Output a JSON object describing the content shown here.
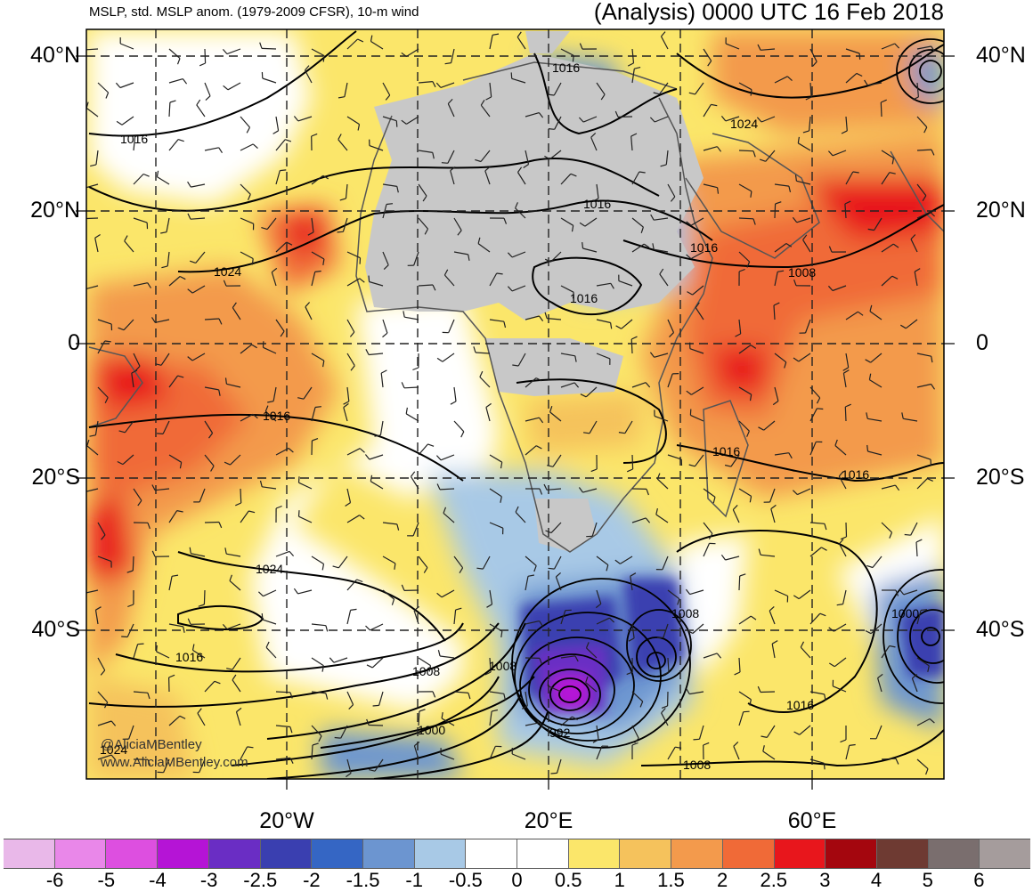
{
  "header": {
    "left": "MSLP, std. MSLP anom. (1979-2009 CFSR), 10-m wind",
    "right": "(Analysis) 0000 UTC 16 Feb 2018"
  },
  "lat_labels": [
    "40°N",
    "20°N",
    "0",
    "20°S",
    "40°S"
  ],
  "lon_labels": [
    "20°W",
    "20°E",
    "60°E"
  ],
  "isobar_labels": [
    "1016",
    "1024",
    "1016",
    "1016",
    "1016",
    "1008",
    "1016",
    "1016",
    "1016",
    "1016",
    "1024",
    "1024",
    "1016",
    "1008",
    "1000",
    "1008",
    "1000",
    "992",
    "1008",
    "1016",
    "1008",
    "1024"
  ],
  "credit": {
    "line1": "@AliciaMBentley",
    "line2": "www.AliciaMBentley.com"
  },
  "colorbar": {
    "colors": [
      "#e9b8e9",
      "#e987e9",
      "#dd4fe0",
      "#b514d6",
      "#6a2dc4",
      "#3a3fb0",
      "#3566c4",
      "#6c95d0",
      "#a8c9e6",
      "#ffffff",
      "#ffffff",
      "#fbe66a",
      "#f5c25c",
      "#f39a4c",
      "#f06a37",
      "#e8161c",
      "#a4060e",
      "#6e3a32",
      "#7a6e6e",
      "#a59c9c"
    ],
    "tick_labels": [
      "-6",
      "-5",
      "-4",
      "-3",
      "-2.5",
      "-2",
      "-1.5",
      "-1",
      "-0.5",
      "0",
      "0.5",
      "1",
      "1.5",
      "2",
      "2.5",
      "3",
      "4",
      "5",
      "6"
    ]
  },
  "colors": {
    "land_no_anomaly": "#c8c8c8",
    "isobar": "#000000"
  }
}
